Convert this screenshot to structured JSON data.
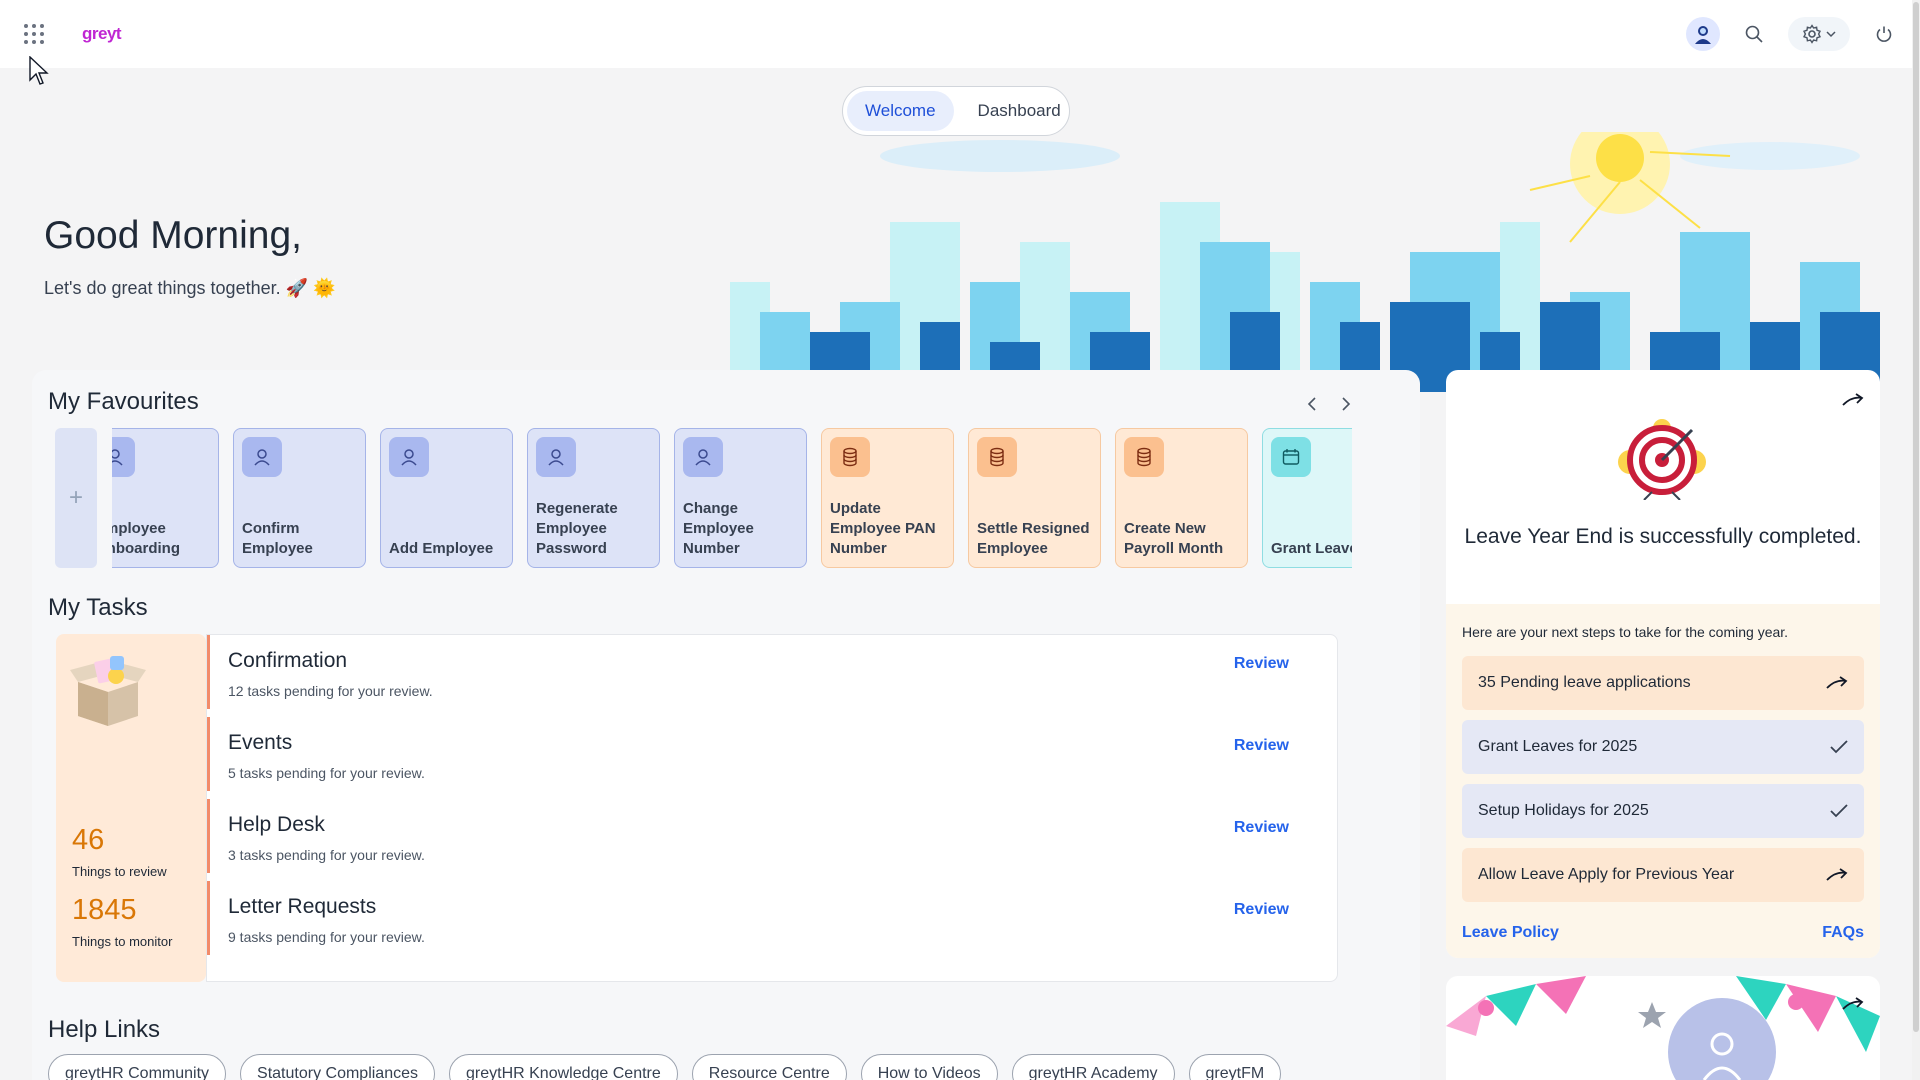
{
  "header": {
    "logo_text": "greyt",
    "icons": [
      "apps-grid-icon",
      "user-avatar-icon",
      "search-icon",
      "gear-icon",
      "chevron-down-icon",
      "power-icon"
    ]
  },
  "tabs": {
    "welcome": "Welcome",
    "dashboard": "Dashboard",
    "active": "Welcome"
  },
  "greeting": {
    "title": "Good Morning,",
    "subtitle": "Let's do great things together. 🚀 🌞"
  },
  "favourites": {
    "title": "My Favourites",
    "add_symbol": "+",
    "items": [
      {
        "label": "Employee Onboarding",
        "icon": "user-icon",
        "color": "blue"
      },
      {
        "label": "Confirm Employee",
        "icon": "user-icon",
        "color": "blue"
      },
      {
        "label": "Add Employee",
        "icon": "user-icon",
        "color": "blue"
      },
      {
        "label": "Regenerate Employee Password",
        "icon": "user-icon",
        "color": "blue"
      },
      {
        "label": "Change Employee Number",
        "icon": "user-icon",
        "color": "blue"
      },
      {
        "label": "Update Employee PAN Number",
        "icon": "database-icon",
        "color": "orange"
      },
      {
        "label": "Settle Resigned Employee",
        "icon": "database-icon",
        "color": "orange"
      },
      {
        "label": "Create New Payroll Month",
        "icon": "database-icon",
        "color": "orange"
      },
      {
        "label": "Grant Leave",
        "icon": "calendar-icon",
        "color": "teal"
      }
    ]
  },
  "tasks": {
    "title": "My Tasks",
    "review_count": "46",
    "review_label": "Things to review",
    "monitor_count": "1845",
    "monitor_label": "Things to monitor",
    "items": [
      {
        "name": "Confirmation",
        "desc": "12 tasks pending for your review.",
        "action": "Review"
      },
      {
        "name": "Events",
        "desc": "5 tasks pending for your review.",
        "action": "Review"
      },
      {
        "name": "Help Desk",
        "desc": "3 tasks pending for your review.",
        "action": "Review"
      },
      {
        "name": "Letter Requests",
        "desc": "9 tasks pending for your review.",
        "action": "Review"
      }
    ]
  },
  "help_links": {
    "title": "Help Links",
    "items": [
      "greytHR Community",
      "Statutory Compliances",
      "greytHR Knowledge Centre",
      "Resource Centre",
      "How to Videos",
      "greytHR Academy",
      "greytFM"
    ]
  },
  "leave_card": {
    "title": "Leave Year End is successfully completed.",
    "intro": "Here are your next steps to take for the coming year.",
    "steps": [
      {
        "label": "35 Pending leave applications",
        "status": "pending"
      },
      {
        "label": "Grant Leaves for 2025",
        "status": "done"
      },
      {
        "label": "Setup Holidays for 2025",
        "status": "done"
      },
      {
        "label": "Allow Leave Apply for Previous Year",
        "status": "pending"
      }
    ],
    "policy_link": "Leave Policy",
    "faq_link": "FAQs"
  },
  "colors": {
    "accent": "#2563eb",
    "active_tab_bg": "#e8eefc",
    "task_border": "#f28b6a",
    "count_color": "#d97706"
  }
}
